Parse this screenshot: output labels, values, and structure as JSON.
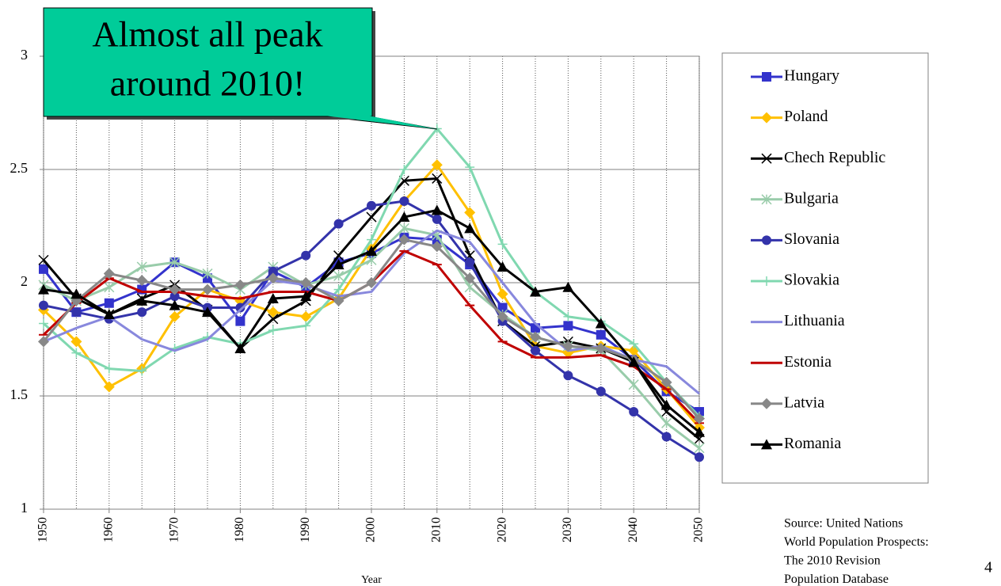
{
  "chart_data": {
    "type": "line",
    "x": [
      1950,
      1955,
      1960,
      1965,
      1970,
      1975,
      1980,
      1985,
      1990,
      1995,
      2000,
      2005,
      2010,
      2015,
      2020,
      2025,
      2030,
      2035,
      2040,
      2045,
      2050
    ],
    "xlim": [
      1950,
      2050
    ],
    "xticks": [
      1950,
      1960,
      1970,
      1980,
      1990,
      2000,
      2010,
      2020,
      2030,
      2040,
      2050
    ],
    "ylim": [
      1,
      3
    ],
    "yticks": [
      1,
      1.5,
      2,
      2.5,
      3
    ],
    "grid": true,
    "x_label": "Year",
    "legend": "right",
    "annotation": [
      "Almost all peak",
      "around 2010!"
    ],
    "source": [
      "Source: United Nations",
      "World Population Prospects:",
      "The 2010 Revision",
      "Population Database"
    ],
    "page_number": 4,
    "series": [
      {
        "name": "Hungary",
        "color": "#3333cc",
        "marker": "square",
        "values": [
          2.06,
          1.87,
          1.91,
          1.97,
          2.09,
          2.02,
          1.83,
          2.05,
          1.98,
          2.09,
          2.13,
          2.2,
          2.19,
          2.08,
          1.89,
          1.8,
          1.81,
          1.77,
          1.66,
          1.52,
          1.43
        ]
      },
      {
        "name": "Poland",
        "color": "#ffc000",
        "marker": "diamond",
        "values": [
          1.88,
          1.74,
          1.54,
          1.62,
          1.85,
          1.97,
          1.92,
          1.87,
          1.85,
          1.93,
          2.15,
          2.36,
          2.52,
          2.31,
          1.95,
          1.72,
          1.69,
          1.72,
          1.7,
          1.53,
          1.36
        ]
      },
      {
        "name": "Chech Republic",
        "color": "#000000",
        "marker": "x",
        "values": [
          2.1,
          1.93,
          1.86,
          1.93,
          1.99,
          1.88,
          1.71,
          1.84,
          1.92,
          2.12,
          2.29,
          2.45,
          2.46,
          2.12,
          1.83,
          1.72,
          1.74,
          1.71,
          1.65,
          1.43,
          1.31
        ]
      },
      {
        "name": "Bulgaria",
        "color": "#99ccaa",
        "marker": "asterisk",
        "values": [
          1.99,
          1.92,
          1.98,
          2.07,
          2.09,
          2.04,
          1.97,
          2.07,
          1.99,
          2.03,
          2.1,
          2.24,
          2.21,
          1.98,
          1.86,
          1.76,
          1.72,
          1.7,
          1.55,
          1.38,
          1.27
        ]
      },
      {
        "name": "Slovania",
        "color": "#3333aa",
        "marker": "circle",
        "values": [
          1.9,
          1.87,
          1.84,
          1.87,
          1.94,
          1.89,
          1.89,
          2.05,
          2.12,
          2.26,
          2.34,
          2.36,
          2.28,
          2.09,
          1.83,
          1.7,
          1.59,
          1.52,
          1.43,
          1.32,
          1.23
        ]
      },
      {
        "name": "Slovakia",
        "color": "#80d8b0",
        "marker": "plus",
        "values": [
          1.82,
          1.69,
          1.62,
          1.61,
          1.71,
          1.76,
          1.73,
          1.79,
          1.81,
          1.97,
          2.19,
          2.5,
          2.68,
          2.51,
          2.17,
          1.96,
          1.85,
          1.83,
          1.73,
          1.56,
          1.41
        ]
      },
      {
        "name": "Lithuania",
        "color": "#8888dd",
        "marker": "none",
        "values": [
          1.74,
          1.8,
          1.85,
          1.75,
          1.7,
          1.75,
          1.88,
          2.01,
          1.99,
          1.94,
          1.96,
          2.13,
          2.23,
          2.18,
          2.0,
          1.82,
          1.7,
          1.72,
          1.66,
          1.63,
          1.51
        ]
      },
      {
        "name": "Estonia",
        "color": "#c00000",
        "marker": "dash",
        "values": [
          1.77,
          1.91,
          2.02,
          1.96,
          1.96,
          1.94,
          1.93,
          1.96,
          1.96,
          1.92,
          2.0,
          2.14,
          2.08,
          1.9,
          1.74,
          1.67,
          1.67,
          1.68,
          1.63,
          1.53,
          1.38
        ]
      },
      {
        "name": "Latvia",
        "color": "#888888",
        "marker": "diamond",
        "values": [
          1.74,
          1.92,
          2.04,
          2.01,
          1.97,
          1.97,
          1.99,
          2.02,
          2.0,
          1.92,
          2.0,
          2.19,
          2.16,
          2.02,
          1.85,
          1.76,
          1.72,
          1.71,
          1.66,
          1.56,
          1.4
        ]
      },
      {
        "name": "Romania",
        "color": "#000000",
        "marker": "triangle",
        "values": [
          1.97,
          1.95,
          1.86,
          1.92,
          1.9,
          1.87,
          1.71,
          1.93,
          1.94,
          2.08,
          2.14,
          2.29,
          2.32,
          2.24,
          2.07,
          1.96,
          1.98,
          1.82,
          1.65,
          1.46,
          1.34
        ]
      }
    ]
  }
}
